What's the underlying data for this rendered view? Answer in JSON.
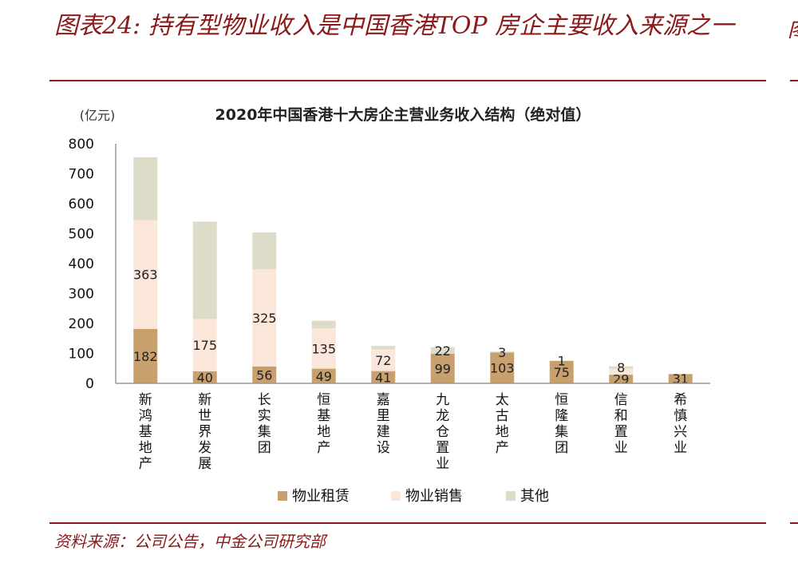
{
  "figure": {
    "title": "图表24: 持有型物业收入是中国香港TOP 房企主要收入来源之一",
    "source": "资料来源：公司公告，中金公司研究部"
  },
  "colors": {
    "rental": "#c8a06e",
    "sales": "#fbe6da",
    "other": "#dcdcc8",
    "brand": "#8b1a1a",
    "axis": "#999999"
  },
  "chart_data": {
    "type": "bar",
    "stacked": true,
    "title": "2020年中国香港十大房企主营业务收入结构（绝对值）",
    "unit_label": "(亿元)",
    "ylim": [
      0,
      800
    ],
    "yticks": [
      0,
      100,
      200,
      300,
      400,
      500,
      600,
      700,
      800
    ],
    "grid": false,
    "legend_position": "bottom",
    "categories": [
      "新鸿基地产",
      "新世界发展",
      "长实集团",
      "恒基地产",
      "嘉里建设",
      "九龙仓置业",
      "太古地产",
      "恒隆集团",
      "信和置业",
      "希慎兴业"
    ],
    "series": [
      {
        "name": "物业租赁",
        "values": [
          182,
          40,
          56,
          49,
          41,
          99,
          103,
          75,
          29,
          31
        ],
        "labeled": [
          true,
          true,
          true,
          true,
          true,
          true,
          true,
          true,
          true,
          true
        ]
      },
      {
        "name": "物业销售",
        "values": [
          363,
          175,
          325,
          135,
          72,
          0,
          0,
          0,
          20,
          0
        ],
        "labeled": [
          true,
          true,
          true,
          true,
          true,
          false,
          false,
          false,
          false,
          false
        ]
      },
      {
        "name": "其他",
        "values": [
          210,
          325,
          123,
          25,
          12,
          22,
          3,
          1,
          8,
          0
        ],
        "labeled": [
          false,
          false,
          false,
          false,
          false,
          true,
          true,
          true,
          true,
          false
        ]
      }
    ]
  }
}
